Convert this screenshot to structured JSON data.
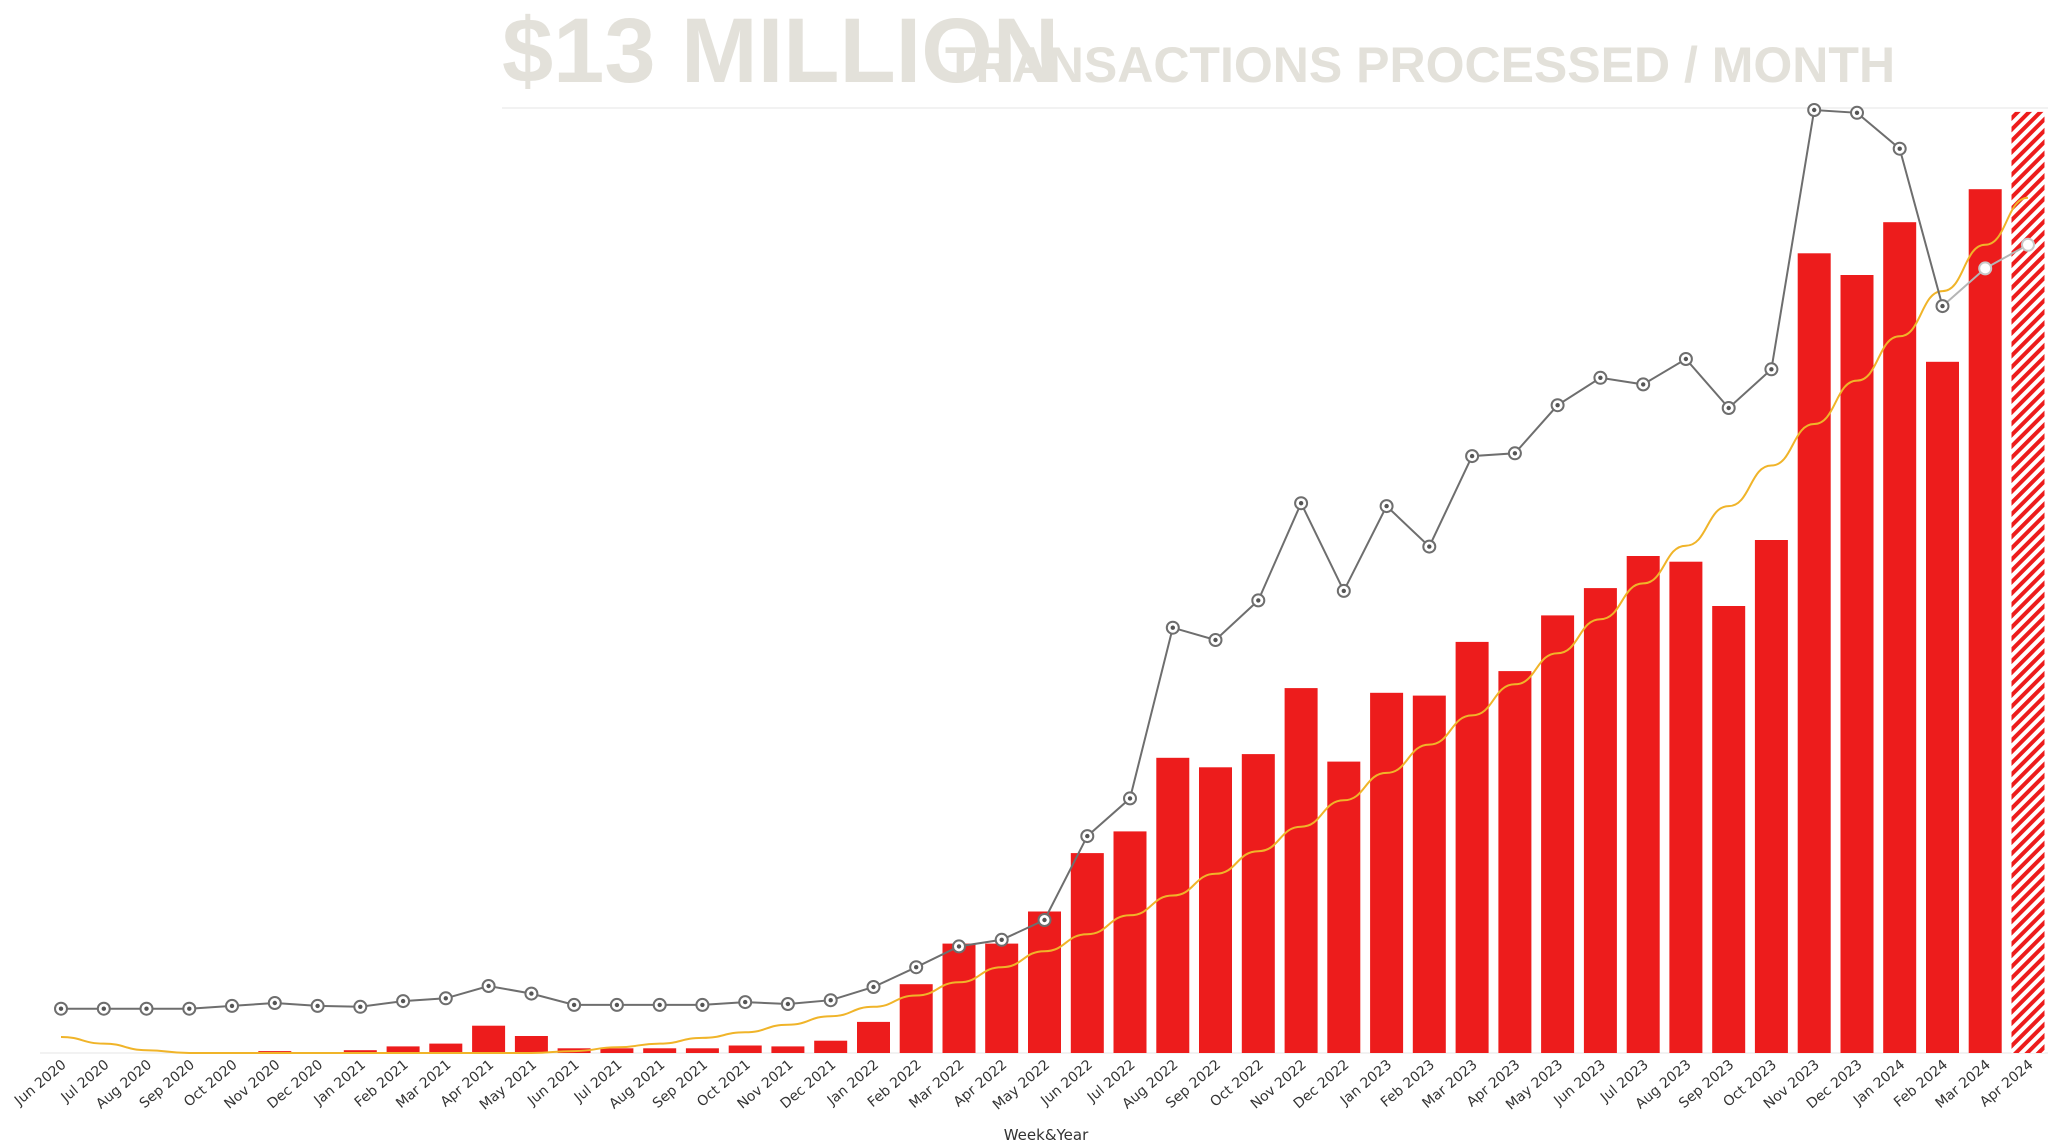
{
  "header": {
    "title": "$13 MILLION",
    "subtitle": "TRANSACTIONS PROCESSED / MONTH"
  },
  "colors": {
    "bar": "#ed1c1c",
    "line": "#6e6e6e",
    "trend": "#f0b429",
    "title": "#e3e1da",
    "gridline": "#e6e6e6"
  },
  "chart_data": {
    "type": "bar",
    "title": "$13 MILLION TRANSACTIONS PROCESSED / MONTH",
    "xlabel": "Week&Year",
    "ylabel": "",
    "ylim": [
      0,
      100
    ],
    "grid": false,
    "legend": "none",
    "categories": [
      "Jun 2020",
      "Jul 2020",
      "Aug 2020",
      "Sep 2020",
      "Oct 2020",
      "Nov 2020",
      "Dec 2020",
      "Jan 2021",
      "Feb 2021",
      "Mar 2021",
      "Apr 2021",
      "May 2021",
      "Jun 2021",
      "Jul 2021",
      "Aug 2021",
      "Sep 2021",
      "Oct 2021",
      "Nov 2021",
      "Dec 2021",
      "Jan 2022",
      "Feb 2022",
      "Mar 2022",
      "Apr 2022",
      "May 2022",
      "Jun 2022",
      "Jul 2022",
      "Aug 2022",
      "Sep 2022",
      "Oct 2022",
      "Nov 2022",
      "Dec 2022",
      "Jan 2023",
      "Feb 2023",
      "Mar 2023",
      "Apr 2023",
      "May 2023",
      "Jun 2023",
      "Jul 2023",
      "Aug 2023",
      "Sep 2023",
      "Oct 2023",
      "Nov 2023",
      "Dec 2023",
      "Jan 2024",
      "Feb 2024",
      "Mar 2024",
      "Apr 2024"
    ],
    "series": [
      {
        "kind": "bar",
        "values": [
          0,
          0,
          0,
          0,
          0.1,
          0.2,
          0.1,
          0.3,
          0.7,
          1,
          2.9,
          1.8,
          0.5,
          0.5,
          0.5,
          0.5,
          0.8,
          0.7,
          1.3,
          3.3,
          7.3,
          11.6,
          11.6,
          15,
          21.2,
          23.5,
          31.3,
          30.3,
          31.7,
          38.7,
          30.9,
          38.2,
          37.9,
          43.6,
          40.5,
          46.4,
          49.3,
          52.7,
          52.1,
          47.4,
          54.4,
          84.8,
          82.5,
          88.1,
          73.3,
          91.6,
          99.8
        ],
        "hatched_last": true
      },
      {
        "kind": "line",
        "values": [
          4.7,
          4.7,
          4.7,
          4.7,
          5,
          5.3,
          5,
          4.9,
          5.5,
          5.8,
          7.1,
          6.3,
          5.1,
          5.1,
          5.1,
          5.1,
          5.4,
          5.2,
          5.6,
          7,
          9.1,
          11.3,
          12,
          14.1,
          23,
          27,
          45.1,
          43.8,
          48,
          58.3,
          49,
          58,
          53.7,
          63.3,
          63.6,
          68.7,
          71.6,
          70.9,
          73.6,
          68.4,
          72.5,
          100,
          99.7,
          95.9,
          79.2,
          83.2,
          85.7
        ],
        "projected_from_index": 45
      },
      {
        "kind": "trend",
        "fit": "quadratic",
        "values": [
          1.7,
          1.0,
          0.3,
          0,
          0,
          0,
          0,
          0,
          0,
          0,
          0,
          0,
          0.2,
          0.6,
          1.0,
          1.6,
          2.2,
          3.0,
          3.9,
          4.9,
          6.1,
          7.5,
          9.1,
          10.8,
          12.6,
          14.6,
          16.7,
          19.0,
          21.4,
          24.0,
          26.8,
          29.7,
          32.7,
          35.8,
          39.1,
          42.4,
          46.0,
          49.8,
          53.8,
          58.0,
          62.3,
          66.7,
          71.3,
          76.0,
          80.8,
          85.7,
          90.7
        ]
      }
    ]
  }
}
